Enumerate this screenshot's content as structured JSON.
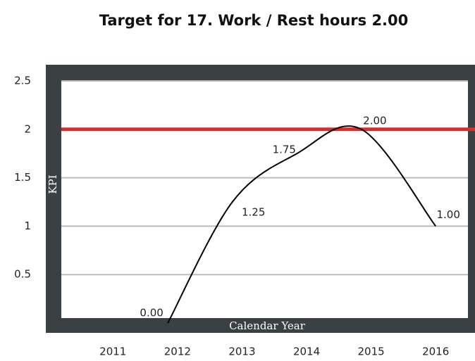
{
  "chart_data": {
    "type": "line",
    "title": "Target for 17. Work / Rest hours 2.00",
    "x_label": "Calendar Year",
    "y_label": "KPI",
    "x": [
      2011.85,
      2012.85,
      2013.85,
      2014.85,
      2016
    ],
    "series": [
      {
        "color": "#000000",
        "values": [
          0,
          1.25,
          1.75,
          2,
          1
        ],
        "value_labels": [
          "0.00",
          "1.25",
          "1.75",
          "2.00",
          "1.00"
        ]
      }
    ],
    "target": 2,
    "target_color": "#d32f2f",
    "xlim": [
      2010.2,
      2016.5
    ],
    "xticks": [
      2011,
      2012,
      2013,
      2014,
      2015,
      2016
    ],
    "ylim": [
      0,
      2.5
    ],
    "yticks": [
      0.5,
      1,
      1.5,
      2,
      2.5
    ],
    "grid": true
  }
}
